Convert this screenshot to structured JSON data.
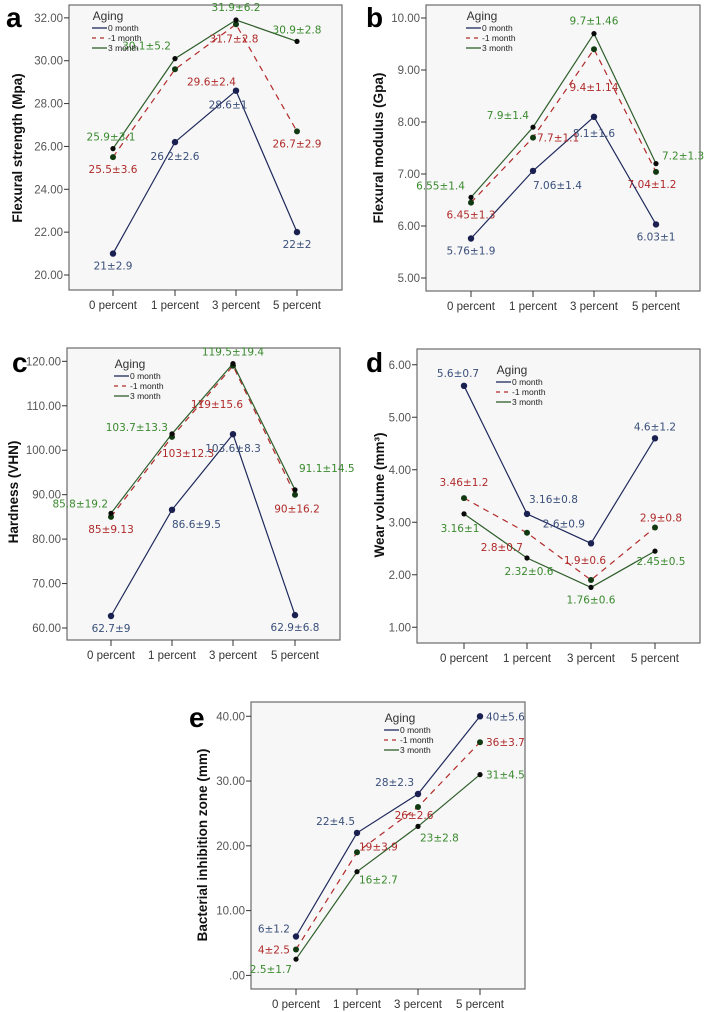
{
  "colors": {
    "series_0_month": "#1f2a5c",
    "series_1_month": "#b22a2a",
    "series_3_month": "#2e5e2a",
    "label_0_month": "#3a4f7a",
    "label_1_month": "#b02a2a",
    "label_3_month": "#3a8a2e",
    "marker": "#0d1a0d"
  },
  "chart_data": [
    {
      "id": "a",
      "type": "line",
      "panel_label": "a",
      "ylabel": "Flexural strength (Mpa)",
      "xlabel": "",
      "categories": [
        "0 percent",
        "1 percent",
        "3 percent",
        "5 percent"
      ],
      "yticks": [
        "20.00",
        "22.00",
        "24.00",
        "26.00",
        "28.00",
        "30.00",
        "32.00"
      ],
      "ytick_values": [
        20,
        22,
        24,
        26,
        28,
        30,
        32
      ],
      "ylim": [
        19.3,
        32.6
      ],
      "legend": {
        "title": "Aging",
        "placement": "top-left",
        "entries": [
          "0 month",
          "-1 month",
          "3 month"
        ]
      },
      "series": [
        {
          "name": "0 month",
          "style": "solid",
          "values": [
            21,
            26.2,
            28.6,
            22
          ],
          "labels": [
            "21±2.9",
            "26.2±2.6",
            "28.6±1",
            "22±2"
          ]
        },
        {
          "name": "1 month",
          "style": "dashed",
          "values": [
            25.5,
            29.6,
            31.7,
            26.7
          ],
          "labels": [
            "25.5±3.6",
            "29.6±2.4",
            "31.7±2.8",
            "26.7±2.9"
          ]
        },
        {
          "name": "3 month",
          "style": "solid",
          "values": [
            25.9,
            30.1,
            31.9,
            30.9
          ],
          "labels": [
            "25.9±3.1",
            "30.1±5.2",
            "31.9±6.2",
            "30.9±2.8"
          ]
        }
      ]
    },
    {
      "id": "b",
      "type": "line",
      "panel_label": "b",
      "ylabel": "Flexural modulus (Gpa)",
      "xlabel": "",
      "categories": [
        "0 percent",
        "1 percent",
        "3 percent",
        "5 percent"
      ],
      "yticks": [
        "5.00",
        "6.00",
        "7.00",
        "8.00",
        "9.00",
        "10.00"
      ],
      "ytick_values": [
        5,
        6,
        7,
        8,
        9,
        10
      ],
      "ylim": [
        4.75,
        10.25
      ],
      "legend": {
        "title": "Aging",
        "placement": "top-left",
        "entries": [
          "0 month",
          "-1 month",
          "3 month"
        ]
      },
      "series": [
        {
          "name": "0 month",
          "style": "solid",
          "values": [
            5.76,
            7.06,
            8.1,
            6.03
          ],
          "labels": [
            "5.76±1.9",
            "7.06±1.4",
            "8.1±1.6",
            "6.03±1"
          ]
        },
        {
          "name": "1 month",
          "style": "dashed",
          "values": [
            6.45,
            7.7,
            9.4,
            7.04
          ],
          "labels": [
            "6.45±1.3",
            "7.7±1.1",
            "9.4±1.14",
            "7.04±1.2"
          ]
        },
        {
          "name": "3 month",
          "style": "solid",
          "values": [
            6.55,
            7.9,
            9.7,
            7.2
          ],
          "labels": [
            "6.55±1.4",
            "7.9±1.4",
            "9.7±1.46",
            "7.2±1.3"
          ]
        }
      ]
    },
    {
      "id": "c",
      "type": "line",
      "panel_label": "c",
      "ylabel": "Hardness (VHN)",
      "xlabel": "",
      "categories": [
        "0 percent",
        "1 percent",
        "3 percent",
        "5 percent"
      ],
      "yticks": [
        "60.00",
        "70.00",
        "80.00",
        "90.00",
        "100.00",
        "110.00",
        "120.00"
      ],
      "ytick_values": [
        60,
        70,
        80,
        90,
        100,
        110,
        120
      ],
      "ylim": [
        57.3,
        123
      ],
      "legend": {
        "title": "Aging",
        "placement": "top-left",
        "entries": [
          "0 month",
          "-1 month",
          "3 month"
        ]
      },
      "series": [
        {
          "name": "0 month",
          "style": "solid",
          "values": [
            62.7,
            86.6,
            103.6,
            62.9
          ],
          "labels": [
            "62.7±9",
            "86.6±9.5",
            "103.6±8.3",
            "62.9±6.8"
          ]
        },
        {
          "name": "1 month",
          "style": "dashed",
          "values": [
            85,
            103,
            119,
            90
          ],
          "labels": [
            "85±9.13",
            "103±12.3",
            "119±15.6",
            "90±16.2"
          ]
        },
        {
          "name": "3 month",
          "style": "solid",
          "values": [
            85.8,
            103.7,
            119.5,
            91.1
          ],
          "labels": [
            "85.8±19.2",
            "103.7±13.3",
            "119.5±19.4",
            "91.1±14.5"
          ]
        }
      ]
    },
    {
      "id": "d",
      "type": "line",
      "panel_label": "d",
      "ylabel": "Wear volume (mm³)",
      "xlabel": "",
      "categories": [
        "0 percent",
        "1 percent",
        "3 percent",
        "5 percent"
      ],
      "yticks": [
        "1.00",
        "2.00",
        "3.00",
        "4.00",
        "5.00",
        "6.00"
      ],
      "ytick_values": [
        1,
        2,
        3,
        4,
        5,
        6
      ],
      "ylim": [
        0.7,
        6.3
      ],
      "legend": {
        "title": "Aging",
        "placement": "top-center",
        "entries": [
          "0 month",
          "-1 month",
          "3 month"
        ]
      },
      "series": [
        {
          "name": "0 month",
          "style": "solid",
          "values": [
            5.6,
            3.16,
            2.6,
            4.6
          ],
          "labels": [
            "5.6±0.7",
            "3.16±0.8",
            "2.6±0.9",
            "4.6±1.2"
          ]
        },
        {
          "name": "1 month",
          "style": "dashed",
          "values": [
            3.46,
            2.8,
            1.9,
            2.9
          ],
          "labels": [
            "3.46±1.2",
            "2.8±0.7",
            "1.9±0.6",
            "2.9±0.8"
          ]
        },
        {
          "name": "3 month",
          "style": "solid",
          "values": [
            3.16,
            2.32,
            1.76,
            2.45
          ],
          "labels": [
            "3.16±1",
            "2.32±0.6",
            "1.76±0.6",
            "2.45±0.5"
          ]
        }
      ]
    },
    {
      "id": "e",
      "type": "line",
      "panel_label": "e",
      "ylabel": "Bacterial inhibition zone (mm)",
      "xlabel": "",
      "categories": [
        "0 percent",
        "1 percent",
        "3 percent",
        "5 percent"
      ],
      "yticks": [
        ".00",
        "10.00",
        "20.00",
        "30.00",
        "40.00"
      ],
      "ytick_values": [
        0,
        10,
        20,
        30,
        40
      ],
      "ylim": [
        -2.1,
        42.2
      ],
      "legend": {
        "title": "Aging",
        "placement": "top-center",
        "entries": [
          "0 month",
          "-1 month",
          "3 month"
        ]
      },
      "series": [
        {
          "name": "0 month",
          "style": "solid",
          "values": [
            6,
            22,
            28,
            40
          ],
          "labels": [
            "6±1.2",
            "22±4.5",
            "28±2.3",
            "40±5.6"
          ]
        },
        {
          "name": "1 month",
          "style": "dashed",
          "values": [
            4,
            19,
            26,
            36
          ],
          "labels": [
            "4±2.5",
            "19±3.9",
            "26±2.6",
            "36±3.7"
          ]
        },
        {
          "name": "3 month",
          "style": "solid",
          "values": [
            2.5,
            16,
            23,
            31
          ],
          "labels": [
            "2.5±1.7",
            "16±2.7",
            "23±2.8",
            "31±4.5"
          ]
        }
      ]
    }
  ]
}
